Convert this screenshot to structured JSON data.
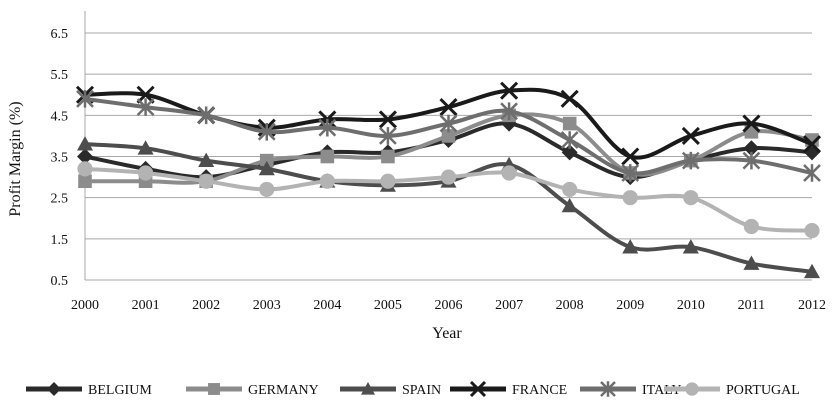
{
  "chart_data": {
    "type": "line",
    "title": "",
    "xlabel": "Year",
    "ylabel": "Profit Margin (%)",
    "ylim": [
      0.5,
      6.5
    ],
    "yticks": [
      "0.5",
      "1.5",
      "2.5",
      "3.5",
      "4.5",
      "5.5",
      "6.5"
    ],
    "grid": "horizontal",
    "legend_position": "bottom",
    "categories": [
      "2000",
      "2001",
      "2002",
      "2003",
      "2004",
      "2005",
      "2006",
      "2007",
      "2008",
      "2009",
      "2010",
      "2011",
      "2012"
    ],
    "series": [
      {
        "name": "BELGIUM",
        "color": "#2a2a2a",
        "marker": "diamond",
        "values": [
          3.5,
          3.2,
          3.0,
          3.3,
          3.6,
          3.6,
          3.9,
          4.3,
          3.6,
          3.0,
          3.4,
          3.7,
          3.6
        ]
      },
      {
        "name": "GERMANY",
        "color": "#8c8c8c",
        "marker": "square",
        "values": [
          2.9,
          2.9,
          2.9,
          3.4,
          3.5,
          3.5,
          4.0,
          4.5,
          4.3,
          3.1,
          3.4,
          4.1,
          3.9
        ]
      },
      {
        "name": "SPAIN",
        "color": "#4d4d4d",
        "marker": "triangle",
        "values": [
          3.8,
          3.7,
          3.4,
          3.2,
          2.9,
          2.8,
          2.9,
          3.3,
          2.3,
          1.3,
          1.3,
          0.9,
          0.7
        ]
      },
      {
        "name": "FRANCE",
        "color": "#1a1a1a",
        "marker": "x",
        "values": [
          5.0,
          5.0,
          4.5,
          4.2,
          4.4,
          4.4,
          4.7,
          5.1,
          4.9,
          3.5,
          4.0,
          4.3,
          3.8
        ]
      },
      {
        "name": "ITALY",
        "color": "#6e6e6e",
        "marker": "star",
        "values": [
          4.9,
          4.7,
          4.5,
          4.1,
          4.2,
          4.0,
          4.3,
          4.6,
          3.9,
          3.1,
          3.4,
          3.4,
          3.1
        ]
      },
      {
        "name": "PORTUGAL",
        "color": "#b3b3b3",
        "marker": "circle",
        "values": [
          3.2,
          3.1,
          2.9,
          2.7,
          2.9,
          2.9,
          3.0,
          3.1,
          2.7,
          2.5,
          2.5,
          1.8,
          1.7
        ]
      }
    ]
  }
}
